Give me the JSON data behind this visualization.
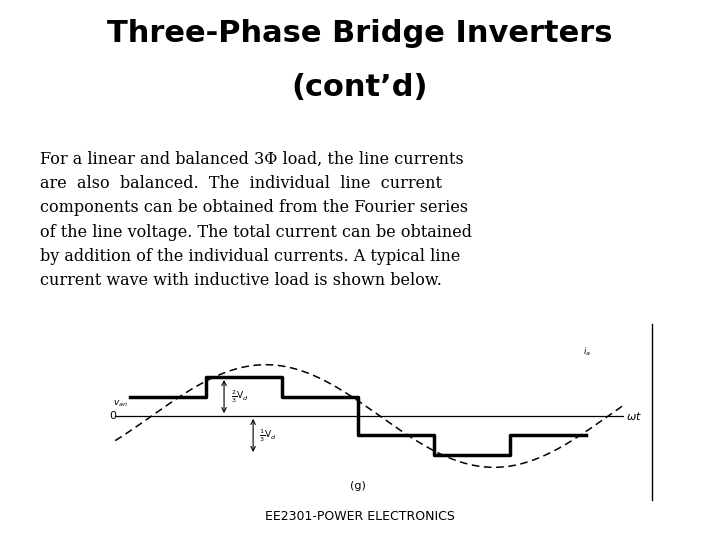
{
  "title_line1": "Three-Phase Bridge Inverters",
  "title_line2": "(cont’d)",
  "body_text": "For a linear and balanced 3Φ load, the line currents\nare  also  balanced.  The  individual  line  current\ncomponents can be obtained from the Fourier series\nof the line voltage. The total current can be obtained\nby addition of the individual currents. A typical line\ncurrent wave with inductive load is shown below.",
  "footer": "EE2301-POWER ELECTRONICS",
  "background_color": "#ffffff",
  "title_fontsize": 22,
  "body_fontsize": 11.5,
  "footer_fontsize": 9,
  "waveform_caption": "(g)"
}
